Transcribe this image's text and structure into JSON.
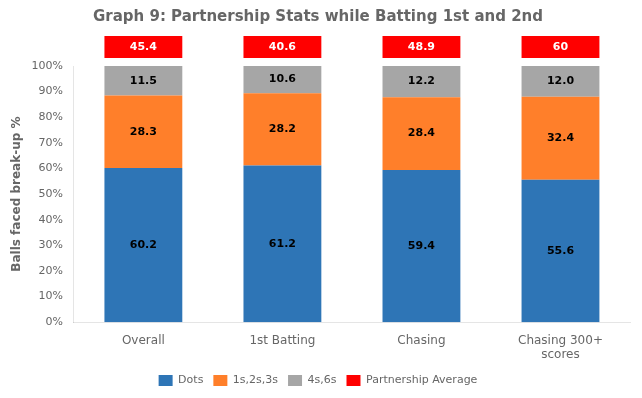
{
  "chart_data": {
    "type": "bar",
    "title": "Graph 9: Partnership Stats while Batting 1st and 2nd",
    "categories": [
      "Overall",
      "1st Batting",
      "Chasing",
      "Chasing 300+\nscores"
    ],
    "series": [
      {
        "name": "Dots",
        "color": "#2E75B6",
        "values": [
          60.2,
          61.2,
          59.4,
          55.6
        ]
      },
      {
        "name": "1s,2s,3s",
        "color": "#FF7F2A",
        "values": [
          28.3,
          28.2,
          28.4,
          32.4
        ]
      },
      {
        "name": "4s,6s",
        "color": "#A6A6A6",
        "values": [
          11.5,
          10.6,
          12.2,
          12.0
        ],
        "value_labels": [
          "11.5",
          "10.6",
          "12.2",
          "12.0"
        ]
      }
    ],
    "partnership_average": {
      "name": "Partnership Average",
      "color": "#FF0000",
      "values": [
        45.4,
        40.6,
        48.9,
        60
      ]
    },
    "y_label": "Balls faced break-up %",
    "ylim": [
      0,
      100
    ],
    "yticks": [
      {
        "value": 0,
        "label": "0%"
      },
      {
        "value": 10,
        "label": "10%"
      },
      {
        "value": 20,
        "label": "20%"
      },
      {
        "value": 30,
        "label": "30%"
      },
      {
        "value": 40,
        "label": "40%"
      },
      {
        "value": 50,
        "label": "50%"
      },
      {
        "value": 60,
        "label": "60%"
      },
      {
        "value": 70,
        "label": "70%"
      },
      {
        "value": 80,
        "label": "80%"
      },
      {
        "value": 90,
        "label": "90%"
      },
      {
        "value": 100,
        "label": "100%"
      }
    ],
    "stacked": true,
    "data_labels": true,
    "grid": false,
    "legend": "bottom"
  }
}
